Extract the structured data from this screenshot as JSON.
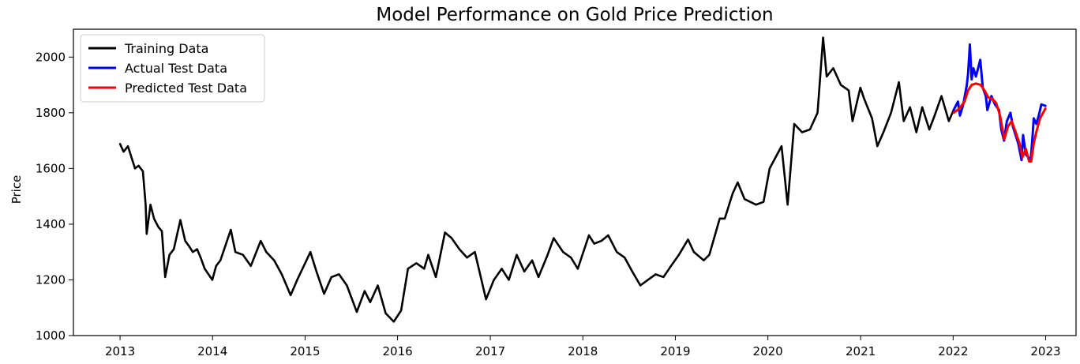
{
  "chart_data": {
    "type": "line",
    "title": "Model Performance on Gold Price Prediction",
    "xlabel": "",
    "ylabel": "Price",
    "xlim": [
      "2012-07-01",
      "2023-05-01"
    ],
    "ylim": [
      1000,
      2100
    ],
    "x_ticks": [
      "2013",
      "2014",
      "2015",
      "2016",
      "2017",
      "2018",
      "2019",
      "2020",
      "2021",
      "2022",
      "2023"
    ],
    "y_ticks": [
      1000,
      1200,
      1400,
      1600,
      1800,
      2000
    ],
    "grid": false,
    "legend_position": "upper-left",
    "series": [
      {
        "name": "Training Data",
        "color": "#000000",
        "points": [
          [
            "2013-01-01",
            1688
          ],
          [
            "2013-01-15",
            1660
          ],
          [
            "2013-02-01",
            1680
          ],
          [
            "2013-02-15",
            1640
          ],
          [
            "2013-03-01",
            1600
          ],
          [
            "2013-03-15",
            1610
          ],
          [
            "2013-04-01",
            1590
          ],
          [
            "2013-04-12",
            1470
          ],
          [
            "2013-04-16",
            1365
          ],
          [
            "2013-05-01",
            1470
          ],
          [
            "2013-05-15",
            1420
          ],
          [
            "2013-06-01",
            1390
          ],
          [
            "2013-06-15",
            1375
          ],
          [
            "2013-06-28",
            1210
          ],
          [
            "2013-07-15",
            1290
          ],
          [
            "2013-08-01",
            1310
          ],
          [
            "2013-08-27",
            1415
          ],
          [
            "2013-09-15",
            1340
          ],
          [
            "2013-10-01",
            1320
          ],
          [
            "2013-10-15",
            1300
          ],
          [
            "2013-11-01",
            1310
          ],
          [
            "2013-11-15",
            1280
          ],
          [
            "2013-12-01",
            1240
          ],
          [
            "2013-12-31",
            1200
          ],
          [
            "2014-01-15",
            1250
          ],
          [
            "2014-02-01",
            1270
          ],
          [
            "2014-03-14",
            1380
          ],
          [
            "2014-04-01",
            1300
          ],
          [
            "2014-05-01",
            1290
          ],
          [
            "2014-06-01",
            1250
          ],
          [
            "2014-07-10",
            1340
          ],
          [
            "2014-08-01",
            1300
          ],
          [
            "2014-09-01",
            1270
          ],
          [
            "2014-10-01",
            1220
          ],
          [
            "2014-11-05",
            1145
          ],
          [
            "2014-12-01",
            1200
          ],
          [
            "2015-01-22",
            1300
          ],
          [
            "2015-02-15",
            1230
          ],
          [
            "2015-03-17",
            1150
          ],
          [
            "2015-04-15",
            1210
          ],
          [
            "2015-05-15",
            1220
          ],
          [
            "2015-06-15",
            1180
          ],
          [
            "2015-07-24",
            1085
          ],
          [
            "2015-08-24",
            1160
          ],
          [
            "2015-09-15",
            1120
          ],
          [
            "2015-10-15",
            1180
          ],
          [
            "2015-11-15",
            1080
          ],
          [
            "2015-12-17",
            1050
          ],
          [
            "2016-01-15",
            1090
          ],
          [
            "2016-02-11",
            1240
          ],
          [
            "2016-03-15",
            1260
          ],
          [
            "2016-04-15",
            1240
          ],
          [
            "2016-05-01",
            1290
          ],
          [
            "2016-05-31",
            1210
          ],
          [
            "2016-07-06",
            1370
          ],
          [
            "2016-08-01",
            1350
          ],
          [
            "2016-09-01",
            1310
          ],
          [
            "2016-10-01",
            1280
          ],
          [
            "2016-11-01",
            1300
          ],
          [
            "2016-12-15",
            1130
          ],
          [
            "2017-01-15",
            1200
          ],
          [
            "2017-02-15",
            1240
          ],
          [
            "2017-03-15",
            1200
          ],
          [
            "2017-04-15",
            1290
          ],
          [
            "2017-05-15",
            1230
          ],
          [
            "2017-06-15",
            1270
          ],
          [
            "2017-07-10",
            1210
          ],
          [
            "2017-08-15",
            1290
          ],
          [
            "2017-09-08",
            1350
          ],
          [
            "2017-10-15",
            1300
          ],
          [
            "2017-11-15",
            1280
          ],
          [
            "2017-12-12",
            1240
          ],
          [
            "2018-01-25",
            1360
          ],
          [
            "2018-02-15",
            1330
          ],
          [
            "2018-03-15",
            1340
          ],
          [
            "2018-04-11",
            1360
          ],
          [
            "2018-05-15",
            1300
          ],
          [
            "2018-06-15",
            1280
          ],
          [
            "2018-07-15",
            1230
          ],
          [
            "2018-08-16",
            1180
          ],
          [
            "2018-09-15",
            1200
          ],
          [
            "2018-10-15",
            1220
          ],
          [
            "2018-11-15",
            1210
          ],
          [
            "2018-12-15",
            1250
          ],
          [
            "2019-01-15",
            1290
          ],
          [
            "2019-02-20",
            1345
          ],
          [
            "2019-03-15",
            1300
          ],
          [
            "2019-04-23",
            1270
          ],
          [
            "2019-05-15",
            1290
          ],
          [
            "2019-06-25",
            1420
          ],
          [
            "2019-07-15",
            1420
          ],
          [
            "2019-08-15",
            1510
          ],
          [
            "2019-09-04",
            1550
          ],
          [
            "2019-10-01",
            1490
          ],
          [
            "2019-11-15",
            1470
          ],
          [
            "2019-12-15",
            1480
          ],
          [
            "2020-01-08",
            1600
          ],
          [
            "2020-02-24",
            1680
          ],
          [
            "2020-03-19",
            1470
          ],
          [
            "2020-04-14",
            1760
          ],
          [
            "2020-05-15",
            1730
          ],
          [
            "2020-06-15",
            1740
          ],
          [
            "2020-07-15",
            1800
          ],
          [
            "2020-08-06",
            2070
          ],
          [
            "2020-08-20",
            1930
          ],
          [
            "2020-09-15",
            1960
          ],
          [
            "2020-10-15",
            1900
          ],
          [
            "2020-11-15",
            1880
          ],
          [
            "2020-11-30",
            1770
          ],
          [
            "2020-12-31",
            1890
          ],
          [
            "2021-01-15",
            1850
          ],
          [
            "2021-02-15",
            1780
          ],
          [
            "2021-03-08",
            1680
          ],
          [
            "2021-04-01",
            1730
          ],
          [
            "2021-05-01",
            1800
          ],
          [
            "2021-06-01",
            1910
          ],
          [
            "2021-06-20",
            1770
          ],
          [
            "2021-07-15",
            1820
          ],
          [
            "2021-08-09",
            1730
          ],
          [
            "2021-09-01",
            1820
          ],
          [
            "2021-09-29",
            1740
          ],
          [
            "2021-10-20",
            1790
          ],
          [
            "2021-11-16",
            1860
          ],
          [
            "2021-12-15",
            1770
          ],
          [
            "2022-01-03",
            1810
          ]
        ]
      },
      {
        "name": "Actual Test Data",
        "color": "#0000ff",
        "points": [
          [
            "2022-01-03",
            1810
          ],
          [
            "2022-01-20",
            1840
          ],
          [
            "2022-01-28",
            1790
          ],
          [
            "2022-02-10",
            1830
          ],
          [
            "2022-02-24",
            1900
          ],
          [
            "2022-03-01",
            1940
          ],
          [
            "2022-03-08",
            2045
          ],
          [
            "2022-03-15",
            1920
          ],
          [
            "2022-03-22",
            1960
          ],
          [
            "2022-04-01",
            1930
          ],
          [
            "2022-04-18",
            1990
          ],
          [
            "2022-04-28",
            1890
          ],
          [
            "2022-05-10",
            1860
          ],
          [
            "2022-05-16",
            1810
          ],
          [
            "2022-06-01",
            1860
          ],
          [
            "2022-06-15",
            1830
          ],
          [
            "2022-07-01",
            1810
          ],
          [
            "2022-07-10",
            1740
          ],
          [
            "2022-07-21",
            1700
          ],
          [
            "2022-08-01",
            1770
          ],
          [
            "2022-08-15",
            1800
          ],
          [
            "2022-08-25",
            1750
          ],
          [
            "2022-09-15",
            1690
          ],
          [
            "2022-09-28",
            1630
          ],
          [
            "2022-10-04",
            1720
          ],
          [
            "2022-10-15",
            1650
          ],
          [
            "2022-10-25",
            1640
          ],
          [
            "2022-11-03",
            1630
          ],
          [
            "2022-11-10",
            1710
          ],
          [
            "2022-11-15",
            1780
          ],
          [
            "2022-11-25",
            1760
          ],
          [
            "2022-12-05",
            1790
          ],
          [
            "2022-12-15",
            1830
          ],
          [
            "2022-12-31",
            1825
          ]
        ]
      },
      {
        "name": "Predicted Test Data",
        "color": "#ff0000",
        "points": [
          [
            "2022-01-03",
            1800
          ],
          [
            "2022-01-25",
            1815
          ],
          [
            "2022-02-15",
            1840
          ],
          [
            "2022-03-01",
            1880
          ],
          [
            "2022-03-15",
            1900
          ],
          [
            "2022-04-01",
            1905
          ],
          [
            "2022-04-20",
            1900
          ],
          [
            "2022-05-05",
            1880
          ],
          [
            "2022-05-20",
            1855
          ],
          [
            "2022-06-05",
            1850
          ],
          [
            "2022-06-20",
            1835
          ],
          [
            "2022-07-05",
            1790
          ],
          [
            "2022-07-22",
            1705
          ],
          [
            "2022-08-05",
            1750
          ],
          [
            "2022-08-20",
            1770
          ],
          [
            "2022-09-05",
            1730
          ],
          [
            "2022-09-20",
            1690
          ],
          [
            "2022-10-01",
            1640
          ],
          [
            "2022-10-15",
            1670
          ],
          [
            "2022-10-28",
            1625
          ],
          [
            "2022-11-05",
            1625
          ],
          [
            "2022-11-15",
            1690
          ],
          [
            "2022-11-25",
            1730
          ],
          [
            "2022-12-10",
            1780
          ],
          [
            "2022-12-31",
            1815
          ]
        ]
      }
    ]
  }
}
